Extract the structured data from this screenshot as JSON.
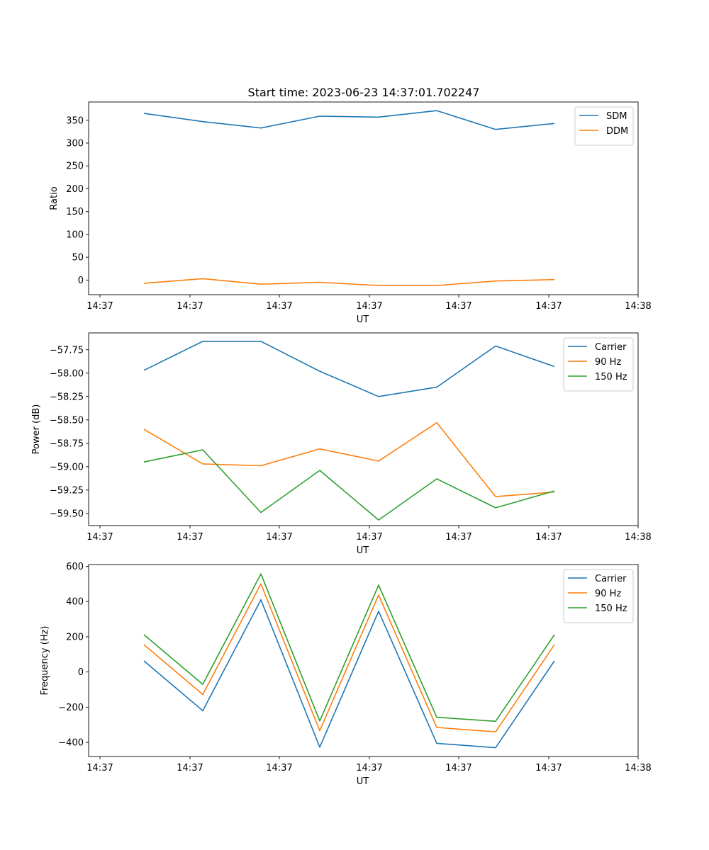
{
  "figure_title": "Start time: 2023-06-23 14:37:01.702247",
  "chart_data": [
    {
      "type": "line",
      "xlabel": "UT",
      "ylabel": "Ratio",
      "xticks": [
        "14:37",
        "14:37",
        "14:37",
        "14:37",
        "14:37",
        "14:37",
        "14:38"
      ],
      "yticks": [
        0,
        50,
        100,
        150,
        200,
        250,
        300,
        350
      ],
      "ylim": [
        -32,
        390
      ],
      "legend_position": "top-right",
      "series": [
        {
          "name": "SDM",
          "color": "#1f77b4",
          "values": [
            365,
            347,
            333,
            359,
            357,
            371,
            330,
            343
          ]
        },
        {
          "name": "DDM",
          "color": "#ff7f0e",
          "values": [
            -7,
            3,
            -9,
            -5,
            -12,
            -12,
            -2,
            1
          ]
        }
      ]
    },
    {
      "type": "line",
      "xlabel": "UT",
      "ylabel": "Power (dB)",
      "xticks": [
        "14:37",
        "14:37",
        "14:37",
        "14:37",
        "14:37",
        "14:37",
        "14:38"
      ],
      "yticks": [
        -57.75,
        -58.0,
        -58.25,
        -58.5,
        -58.75,
        -59.0,
        -59.25,
        -59.5
      ],
      "ylim": [
        -59.63,
        -57.57
      ],
      "legend_position": "top-right",
      "series": [
        {
          "name": "Carrier",
          "color": "#1f77b4",
          "values": [
            -57.97,
            -57.66,
            -57.66,
            -57.98,
            -58.25,
            -58.15,
            -57.71,
            -57.93
          ]
        },
        {
          "name": "90 Hz",
          "color": "#ff7f0e",
          "values": [
            -58.6,
            -58.97,
            -58.99,
            -58.81,
            -58.94,
            -58.53,
            -59.32,
            -59.27
          ]
        },
        {
          "name": "150 Hz",
          "color": "#2ca02c",
          "values": [
            -58.95,
            -58.82,
            -59.49,
            -59.04,
            -59.57,
            -59.13,
            -59.44,
            -59.26
          ]
        }
      ]
    },
    {
      "type": "line",
      "xlabel": "UT",
      "ylabel": "Frequency (Hz)",
      "xticks": [
        "14:37",
        "14:37",
        "14:37",
        "14:37",
        "14:37",
        "14:37",
        "14:38"
      ],
      "yticks": [
        600,
        400,
        200,
        0,
        -200,
        -400
      ],
      "ylim": [
        -480,
        610
      ],
      "legend_position": "top-right",
      "series": [
        {
          "name": "Carrier",
          "color": "#1f77b4",
          "values": [
            63,
            -220,
            410,
            -427,
            345,
            -405,
            -430,
            63
          ]
        },
        {
          "name": "90 Hz",
          "color": "#ff7f0e",
          "values": [
            155,
            -128,
            500,
            -333,
            437,
            -315,
            -340,
            155
          ]
        },
        {
          "name": "150 Hz",
          "color": "#2ca02c",
          "values": [
            212,
            -70,
            557,
            -278,
            493,
            -257,
            -280,
            212
          ]
        }
      ]
    }
  ]
}
